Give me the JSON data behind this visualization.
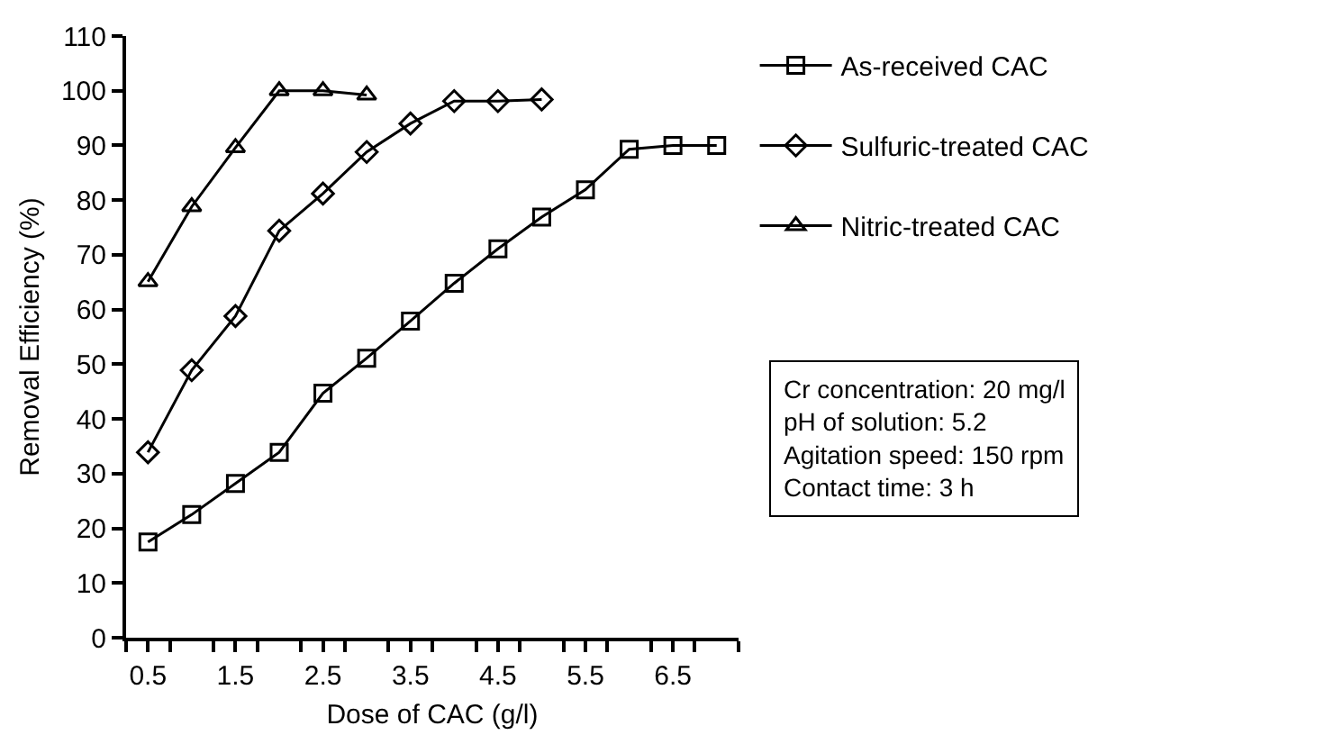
{
  "chart_data": {
    "type": "line",
    "xlabel": "Dose of CAC (g/l)",
    "ylabel": "Removal Efficiency (%)",
    "x": [
      0.5,
      1,
      1.5,
      2,
      2.5,
      3,
      3.5,
      4,
      4.5,
      5,
      5.5,
      6,
      6.5,
      7
    ],
    "series": [
      {
        "name": "As-received CAC",
        "color": "#000000",
        "marker": "square",
        "values": [
          17.5,
          22.5,
          28.2,
          33.9,
          44.7,
          51.1,
          57.9,
          64.8,
          71.1,
          76.9,
          81.9,
          89.3,
          90,
          90
        ]
      },
      {
        "name": "Sulfuric-treated CAC",
        "color": "#000000",
        "marker": "diamond",
        "values": [
          33.9,
          48.9,
          58.8,
          74.4,
          81.2,
          88.8,
          94,
          98.1,
          98.1,
          98.4,
          null,
          null,
          null,
          null
        ]
      },
      {
        "name": "Nitric-treated CAC",
        "color": "#000000",
        "marker": "triangle",
        "values": [
          65.1,
          78.8,
          89.6,
          100,
          100,
          99.2,
          null,
          null,
          null,
          null,
          null,
          null,
          null,
          null
        ]
      }
    ],
    "xlim": [
      0.25,
      7.25
    ],
    "xticks": [
      0.5,
      1.5,
      2.5,
      3.5,
      4.5,
      5.5,
      6.5,
      {
        "value": 0.25,
        "label": null
      },
      {
        "value": 0.75,
        "label": null
      },
      {
        "value": 1.25,
        "label": null
      },
      {
        "value": 1.75,
        "label": null
      },
      {
        "value": 2.25,
        "label": null
      },
      {
        "value": 2.75,
        "label": null
      },
      {
        "value": 3.25,
        "label": null
      },
      {
        "value": 3.75,
        "label": null
      },
      {
        "value": 4.25,
        "label": null
      },
      {
        "value": 4.75,
        "label": null
      },
      {
        "value": 5.25,
        "label": null
      },
      {
        "value": 5.75,
        "label": null
      },
      {
        "value": 6.25,
        "label": null
      },
      {
        "value": 6.75,
        "label": null
      },
      {
        "value": 7.25,
        "label": null
      }
    ],
    "ylim": [
      0,
      110
    ],
    "yticks": [
      0,
      10,
      20,
      30,
      40,
      50,
      60,
      70,
      80,
      90,
      100,
      110
    ],
    "grid": false,
    "legend": "right",
    "line_style": "solid",
    "annotations": [
      "Cr concentration: 20 mg/l\npH of solution: 5.2\nAgitation speed: 150 rpm\nContact time: 3 h"
    ]
  }
}
